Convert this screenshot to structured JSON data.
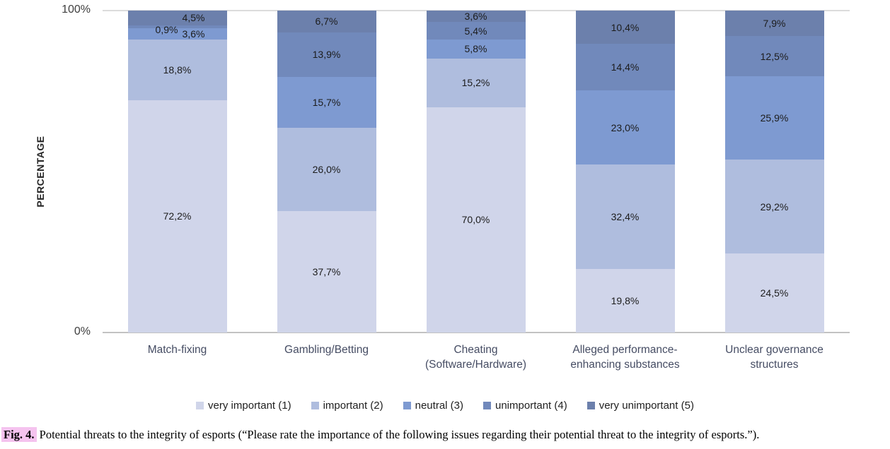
{
  "chart_data": {
    "type": "bar",
    "stacked": true,
    "title": "",
    "ylabel": "PERCENTAGE",
    "xlabel": "",
    "ylim": [
      0,
      100
    ],
    "yticks": [
      "100%",
      "0%"
    ],
    "grid": false,
    "legend_position": "bottom",
    "value_suffix": "%",
    "decimal_separator": ",",
    "categories": [
      "Match-fixing",
      "Gambling/Betting",
      "Cheating\n(Software/Hardware)",
      "Alleged performance-\nenhancing substances",
      "Unclear governance\nstructures"
    ],
    "series": [
      {
        "name": "very important (1)",
        "color": "#d0d5ea",
        "values": [
          72.2,
          37.7,
          70.0,
          19.8,
          24.5
        ]
      },
      {
        "name": "important (2)",
        "color": "#afbdde",
        "values": [
          18.8,
          26.0,
          15.2,
          32.4,
          29.2
        ]
      },
      {
        "name": "neutral (3)",
        "color": "#7e9ad1",
        "values": [
          3.6,
          15.7,
          5.8,
          23.0,
          25.9
        ]
      },
      {
        "name": "unimportant (4)",
        "color": "#7189bb",
        "values": [
          0.9,
          13.9,
          5.4,
          14.4,
          12.5
        ]
      },
      {
        "name": "very unimportant (5)",
        "color": "#6c80ac",
        "values": [
          4.5,
          6.7,
          3.6,
          10.4,
          7.9
        ]
      }
    ]
  },
  "caption": {
    "fig_label": "Fig. 4.",
    "text": "Potential threats to the integrity of esports (“Please rate the importance of the following issues regarding their potential threat to the integrity of esports.”)."
  },
  "colors": {
    "caption_highlight": "#f5c3ef",
    "axis_line": "#c2c2c2",
    "top_gridline": "#dcdcdc"
  }
}
